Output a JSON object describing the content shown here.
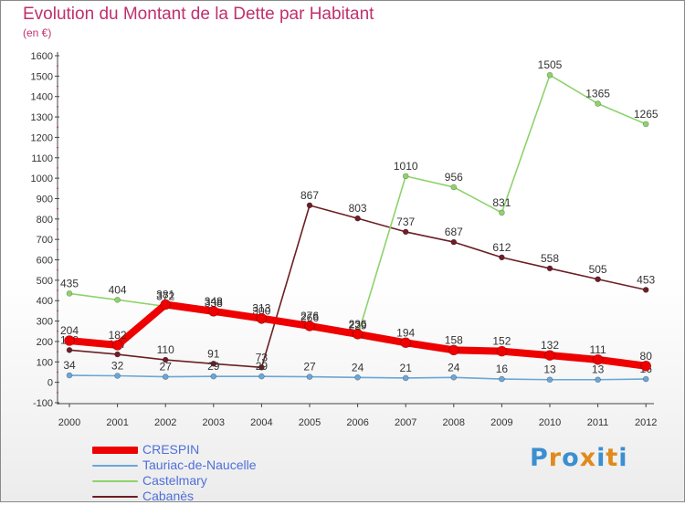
{
  "title": "Evolution du Montant de la Dette par Habitant",
  "subtitle": "(en €)",
  "logo": {
    "text": "Proxiti",
    "letters": [
      {
        "ch": "P",
        "color": "#3a8fd0"
      },
      {
        "ch": "r",
        "color": "#e08a1e"
      },
      {
        "ch": "o",
        "color": "#3a8fd0"
      },
      {
        "ch": "x",
        "color": "#e08a1e"
      },
      {
        "ch": "i",
        "color": "#3a8fd0"
      },
      {
        "ch": "t",
        "color": "#e08a1e"
      },
      {
        "ch": "i",
        "color": "#3a8fd0"
      }
    ]
  },
  "chart_data": {
    "type": "line",
    "title": "Evolution du Montant de la Dette par Habitant",
    "subtitle": "(en €)",
    "xlabel": "",
    "ylabel": "",
    "x": [
      "2000",
      "2001",
      "2002",
      "2003",
      "2004",
      "2005",
      "2006",
      "2007",
      "2008",
      "2009",
      "2010",
      "2011",
      "2012"
    ],
    "ylim": [
      -100,
      1600
    ],
    "yticks": [
      "-100",
      "0",
      "100",
      "200",
      "300",
      "400",
      "500",
      "600",
      "700",
      "800",
      "900",
      "1000",
      "1100",
      "1200",
      "1300",
      "1400",
      "1500",
      "1600"
    ],
    "grid": false,
    "legend_position": "bottom-left",
    "series": [
      {
        "name": "Cabanès",
        "color": "#6b1f24",
        "values": [
          158,
          137,
          110,
          91,
          73,
          867,
          803,
          737,
          687,
          612,
          558,
          505,
          453
        ],
        "labels": [
          "158",
          "137",
          "110",
          "91",
          "73",
          "867",
          "803",
          "737",
          "687",
          "612",
          "558",
          "505",
          "453"
        ]
      },
      {
        "name": "Castelmary",
        "color": "#8dd36b",
        "values": [
          435,
          404,
          372,
          338,
          300,
          266,
          229,
          1010,
          956,
          831,
          1505,
          1365,
          1265
        ],
        "labels": [
          "435",
          "404",
          "372",
          "338",
          "300",
          "266",
          "229",
          "1010",
          "956",
          "831",
          "1505",
          "1365",
          "1265"
        ]
      },
      {
        "name": "Tauriac-de-Naucelle",
        "color": "#6aa6d8",
        "values": [
          34,
          32,
          27,
          29,
          29,
          27,
          24,
          21,
          24,
          16,
          13,
          13,
          16
        ],
        "labels": [
          "34",
          "32",
          "27",
          "29",
          "29",
          "27",
          "24",
          "21",
          "24",
          "16",
          "13",
          "13",
          "16"
        ]
      },
      {
        "name": "CRESPIN",
        "color": "#ee0000",
        "values": [
          204,
          182,
          381,
          348,
          313,
          276,
          236,
          194,
          158,
          152,
          132,
          111,
          80
        ],
        "labels": [
          "204",
          "182",
          "381",
          "348",
          "313",
          "276",
          "236",
          "194",
          "158",
          "152",
          "132",
          "111",
          "80"
        ]
      }
    ],
    "legend": [
      {
        "name": "CRESPIN",
        "color": "#ee0000"
      },
      {
        "name": "Tauriac-de-Naucelle",
        "color": "#6aa6d8"
      },
      {
        "name": "Castelmary",
        "color": "#8dd36b"
      },
      {
        "name": "Cabanès",
        "color": "#6b1f24"
      }
    ]
  }
}
